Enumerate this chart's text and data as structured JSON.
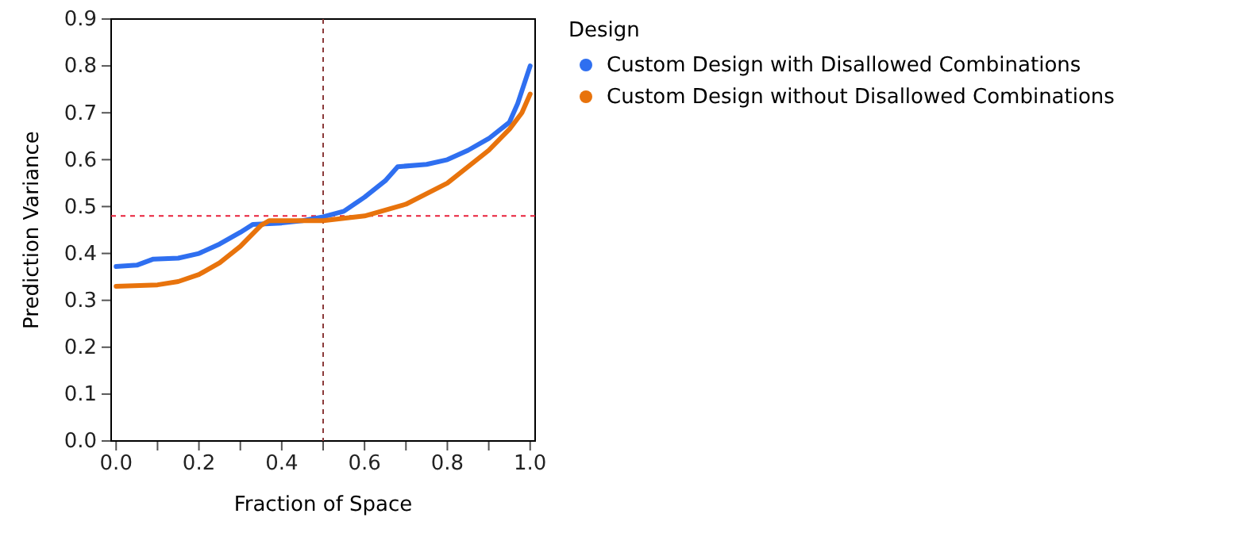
{
  "chart_data": {
    "type": "line",
    "xlabel": "Fraction of Space",
    "ylabel": "Prediction Variance",
    "legend_title": "Design",
    "legend": "right",
    "xlim": [
      -0.012,
      1.012
    ],
    "ylim": [
      0,
      0.9
    ],
    "xticks": [
      {
        "value": 0,
        "label": "0.0"
      },
      {
        "value": 0.1,
        "label": null
      },
      {
        "value": 0.2,
        "label": "0.2"
      },
      {
        "value": 0.3,
        "label": null
      },
      {
        "value": 0.4,
        "label": "0.4"
      },
      {
        "value": 0.5,
        "label": null
      },
      {
        "value": 0.6,
        "label": "0.6"
      },
      {
        "value": 0.7,
        "label": null
      },
      {
        "value": 0.8,
        "label": "0.8"
      },
      {
        "value": 0.9,
        "label": null
      },
      {
        "value": 1,
        "label": "1.0"
      }
    ],
    "yticks": [
      {
        "value": 0,
        "label": "0.0"
      },
      0.1,
      0.2,
      0.3,
      0.4,
      0.5,
      0.6,
      0.7,
      0.8,
      0.9
    ],
    "grid": false,
    "marker": "none",
    "line_style": "solid",
    "ref_lines": [
      {
        "axis": "x",
        "value": 0.5,
        "label": null,
        "color": "#8b3a3a",
        "line_style": "dotted"
      },
      {
        "axis": "y",
        "value": 0.48,
        "label": null,
        "color": "#e8203a",
        "line_style": "dotted"
      }
    ],
    "series": [
      {
        "name": "Custom Design with Disallowed Combinations",
        "color": "#2f6ff0",
        "x": [
          0,
          0.05,
          0.09,
          0.15,
          0.2,
          0.25,
          0.3,
          0.33,
          0.4,
          0.45,
          0.5,
          0.55,
          0.6,
          0.65,
          0.68,
          0.75,
          0.8,
          0.85,
          0.9,
          0.95,
          0.97,
          1.0
        ],
        "values": [
          0.372,
          0.375,
          0.388,
          0.39,
          0.4,
          0.42,
          0.445,
          0.462,
          0.465,
          0.47,
          0.478,
          0.49,
          0.52,
          0.555,
          0.585,
          0.59,
          0.6,
          0.62,
          0.645,
          0.68,
          0.72,
          0.8
        ]
      },
      {
        "name": "Custom Design without Disallowed Combinations",
        "color": "#e8730c",
        "x": [
          0,
          0.1,
          0.15,
          0.2,
          0.25,
          0.3,
          0.35,
          0.37,
          0.5,
          0.6,
          0.7,
          0.8,
          0.9,
          0.95,
          0.98,
          1.0
        ],
        "values": [
          0.33,
          0.333,
          0.34,
          0.355,
          0.38,
          0.415,
          0.46,
          0.47,
          0.47,
          0.48,
          0.505,
          0.55,
          0.62,
          0.665,
          0.7,
          0.74
        ]
      }
    ]
  }
}
